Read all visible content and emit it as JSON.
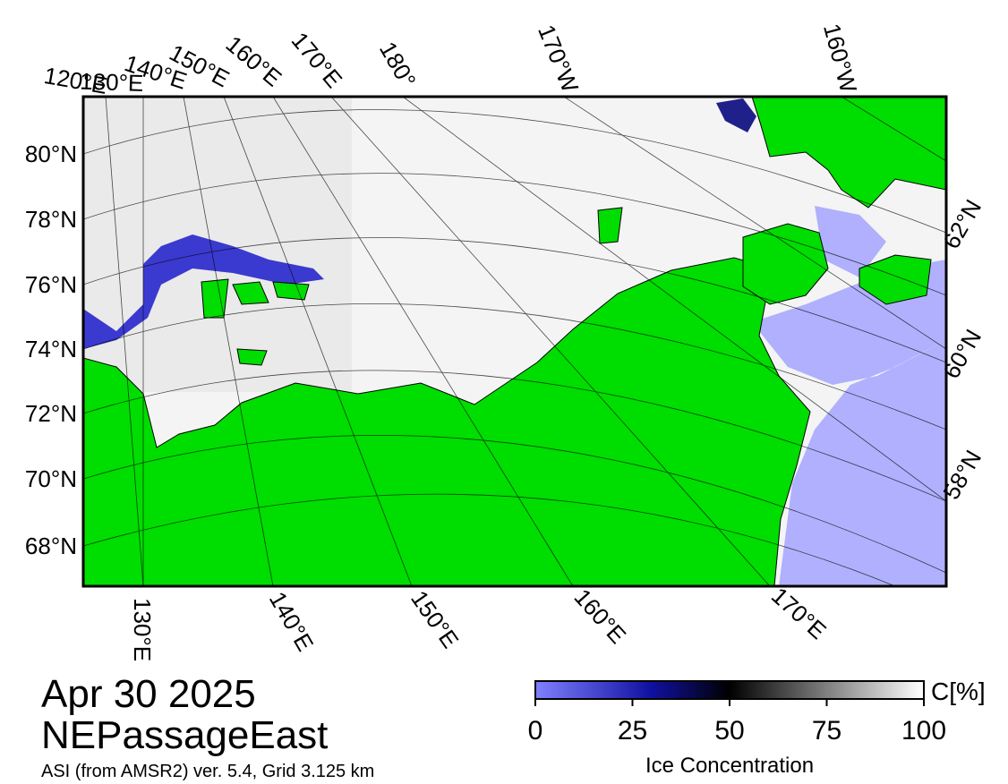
{
  "map": {
    "top_labels": [
      "120°E",
      "130°E",
      "140°E",
      "150°E",
      "160°E",
      "170°E",
      "180°",
      "170°W",
      "160°W"
    ],
    "left_labels": [
      "80°N",
      "78°N",
      "76°N",
      "74°N",
      "72°N",
      "70°N",
      "68°N"
    ],
    "bottom_labels": [
      "130°E",
      "140°E",
      "150°E",
      "160°E",
      "170°E"
    ],
    "right_labels": [
      "62°N",
      "60°N",
      "58°N"
    ]
  },
  "footer": {
    "date": "Apr 30 2025",
    "region": "NEPassageEast",
    "source": "ASI (from AMSR2) ver. 5.4,  Grid 3.125 km"
  },
  "colorbar": {
    "title": "Ice Concentration",
    "unit": "C[%]",
    "range": [
      0,
      100
    ],
    "ticks": [
      0,
      25,
      50,
      75,
      100
    ]
  }
}
